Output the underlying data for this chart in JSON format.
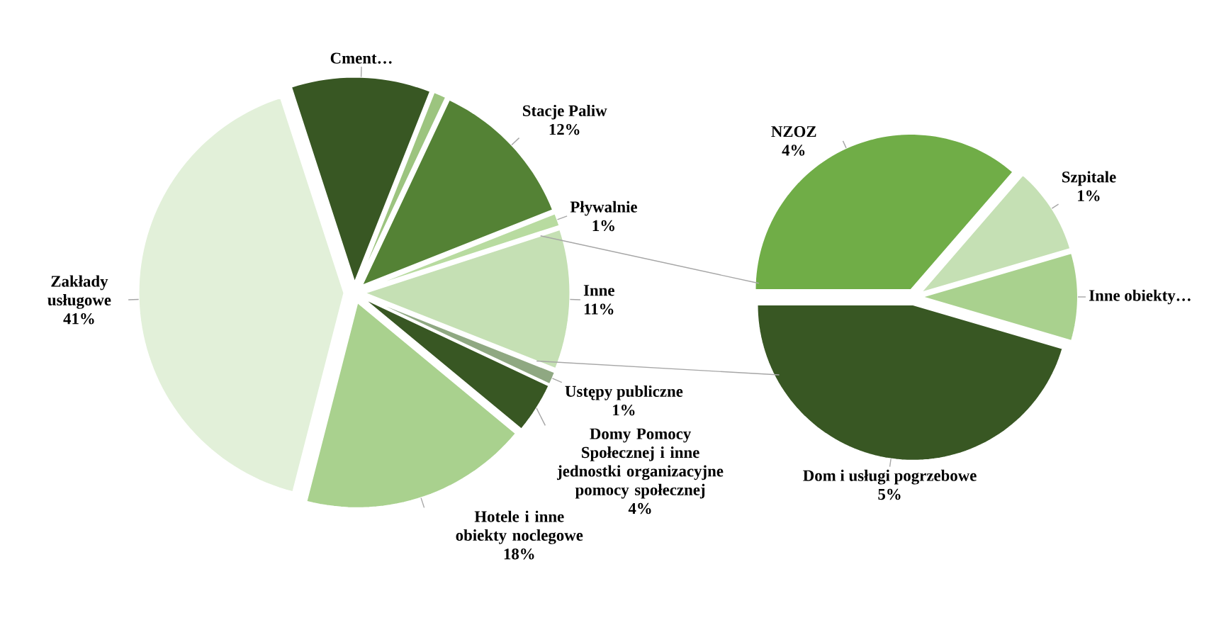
{
  "chart_data": [
    {
      "type": "pie",
      "categories": [
        "Cment…",
        null,
        "Stacje Paliw",
        "Pływalnie",
        "Inne",
        "Ustępy publiczne",
        "Domy Pomocy Społecznej i inne jednostki organizacyjne pomocy społecznej",
        "Hotele i inne obiekty noclegowe",
        "Zakłady usługowe"
      ],
      "values": [
        11,
        1,
        12,
        1,
        11,
        1,
        4,
        18,
        41
      ],
      "value_labels": [
        null,
        null,
        "12%",
        "1%",
        "11%",
        "1%",
        "4%",
        "18%",
        "41%"
      ],
      "colors": [
        "#385723",
        "#9cc47f",
        "#548235",
        "#b8dba0",
        "#c5e0b4",
        "#8fa882",
        "#385723",
        "#a9d18e",
        "#e2f0d9"
      ]
    },
    {
      "type": "pie",
      "categories": [
        "NZOZ",
        "Szpitale",
        "Inne obiekty…",
        "Dom i usługi pogrzebowe"
      ],
      "values": [
        4,
        1,
        1,
        5
      ],
      "value_labels": [
        "4%",
        "1%",
        null,
        "5%"
      ],
      "colors": [
        "#70ad47",
        "#c5e0b4",
        "#a9d18e",
        "#385723"
      ]
    }
  ]
}
